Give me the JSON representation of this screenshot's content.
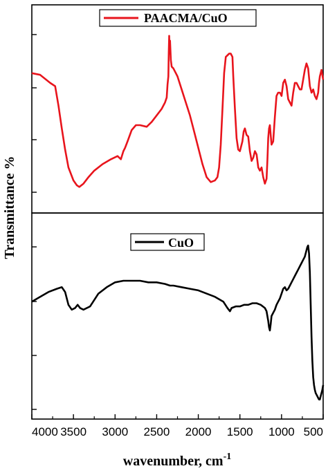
{
  "chart_data": {
    "type": "line",
    "xlabel_base": "wavenumber, cm",
    "xlabel_superscript": "-1",
    "ylabel": "Transmittance %",
    "xlim": [
      4000,
      500
    ],
    "x_reversed": true,
    "x_ticks": [
      4000,
      3500,
      3000,
      2500,
      2000,
      1500,
      1000,
      500
    ],
    "x_tick_labels": [
      "4000",
      "3500",
      "3000",
      "2500",
      "2000",
      "1500",
      "1000",
      "500"
    ],
    "grid": false,
    "legend_placement": "top-center",
    "panels": [
      {
        "series": [
          {
            "name": "PAACMA/CuO",
            "color": "#e8141c",
            "x": [
              4000,
              3900,
              3780,
              3720,
              3680,
              3640,
              3600,
              3560,
              3500,
              3460,
              3430,
              3380,
              3320,
              3250,
              3150,
              3050,
              2970,
              2930,
              2900,
              2880,
              2850,
              2800,
              2750,
              2700,
              2620,
              2560,
              2500,
              2440,
              2400,
              2380,
              2370,
              2360,
              2355,
              2350,
              2345,
              2340,
              2330,
              2320,
              2300,
              2250,
              2200,
              2150,
              2100,
              2050,
              2000,
              1950,
              1900,
              1850,
              1800,
              1770,
              1750,
              1730,
              1710,
              1690,
              1670,
              1650,
              1630,
              1610,
              1600,
              1590,
              1580,
              1560,
              1540,
              1520,
              1500,
              1490,
              1470,
              1455,
              1440,
              1420,
              1400,
              1380,
              1360,
              1340,
              1320,
              1300,
              1280,
              1260,
              1240,
              1220,
              1200,
              1180,
              1170,
              1160,
              1150,
              1140,
              1130,
              1120,
              1100,
              1080,
              1060,
              1040,
              1020,
              1000,
              980,
              960,
              940,
              920,
              900,
              880,
              860,
              840,
              820,
              800,
              780,
              760,
              740,
              720,
              700,
              680,
              660,
              640,
              620,
              600,
              580,
              560,
              550,
              540,
              530,
              520,
              510,
              500
            ],
            "y": [
              72,
              71,
              66,
              64,
              52,
              38,
              25,
              14,
              6,
              3,
              2,
              4,
              8,
              12,
              16,
              19,
              21,
              19,
              24,
              26,
              30,
              37,
              40,
              40,
              39,
              42,
              46,
              50,
              54,
              57,
              65,
              70,
              85,
              95,
              84,
              92,
              80,
              76,
              75,
              70,
              62,
              54,
              46,
              36,
              26,
              16,
              8,
              5,
              6,
              8,
              14,
              28,
              50,
              72,
              82,
              83,
              84,
              84,
              83,
              82,
              70,
              50,
              32,
              25,
              24,
              26,
              30,
              36,
              38,
              34,
              33,
              24,
              18,
              20,
              24,
              22,
              14,
              12,
              14,
              8,
              4,
              7,
              18,
              32,
              38,
              40,
              34,
              28,
              30,
              45,
              58,
              60,
              60,
              58,
              66,
              68,
              64,
              56,
              54,
              52,
              60,
              66,
              66,
              64,
              62,
              62,
              68,
              74,
              78,
              75,
              64,
              60,
              62,
              58,
              56,
              60,
              66,
              70,
              72,
              74,
              71,
              68
            ]
          }
        ]
      },
      {
        "series": [
          {
            "name": "CuO",
            "color": "#000000",
            "x": [
              4000,
              3900,
              3800,
              3700,
              3640,
              3600,
              3560,
              3520,
              3480,
              3450,
              3420,
              3380,
              3300,
              3200,
              3100,
              3000,
              2900,
              2800,
              2700,
              2600,
              2500,
              2400,
              2340,
              2300,
              2200,
              2100,
              2000,
              1900,
              1800,
              1700,
              1650,
              1620,
              1600,
              1550,
              1500,
              1450,
              1400,
              1350,
              1300,
              1250,
              1200,
              1180,
              1160,
              1150,
              1140,
              1130,
              1120,
              1100,
              1080,
              1060,
              1040,
              1020,
              1000,
              980,
              960,
              940,
              920,
              900,
              880,
              860,
              840,
              820,
              800,
              780,
              760,
              740,
              720,
              700,
              690,
              680,
              670,
              660,
              650,
              640,
              630,
              620,
              610,
              600,
              590,
              580,
              570,
              560,
              550,
              540,
              530,
              520,
              510,
              500
            ],
            "y": [
              62,
              65,
              68,
              70,
              71,
              68,
              60,
              57,
              58,
              60,
              58,
              57,
              59,
              67,
              71,
              74,
              75,
              75,
              75,
              74,
              74,
              73,
              72,
              72,
              71,
              70,
              69,
              67,
              65,
              62,
              58,
              56,
              58,
              59,
              59,
              60,
              60,
              61,
              61,
              60,
              58,
              56,
              50,
              46,
              44,
              48,
              53,
              55,
              57,
              60,
              62,
              64,
              67,
              70,
              71,
              69,
              70,
              72,
              74,
              76,
              78,
              80,
              82,
              84,
              86,
              88,
              90,
              94,
              96,
              97,
              92,
              80,
              60,
              40,
              25,
              15,
              10,
              7,
              5,
              4,
              3,
              2,
              1,
              1,
              3,
              5,
              7,
              10
            ]
          }
        ]
      }
    ]
  }
}
